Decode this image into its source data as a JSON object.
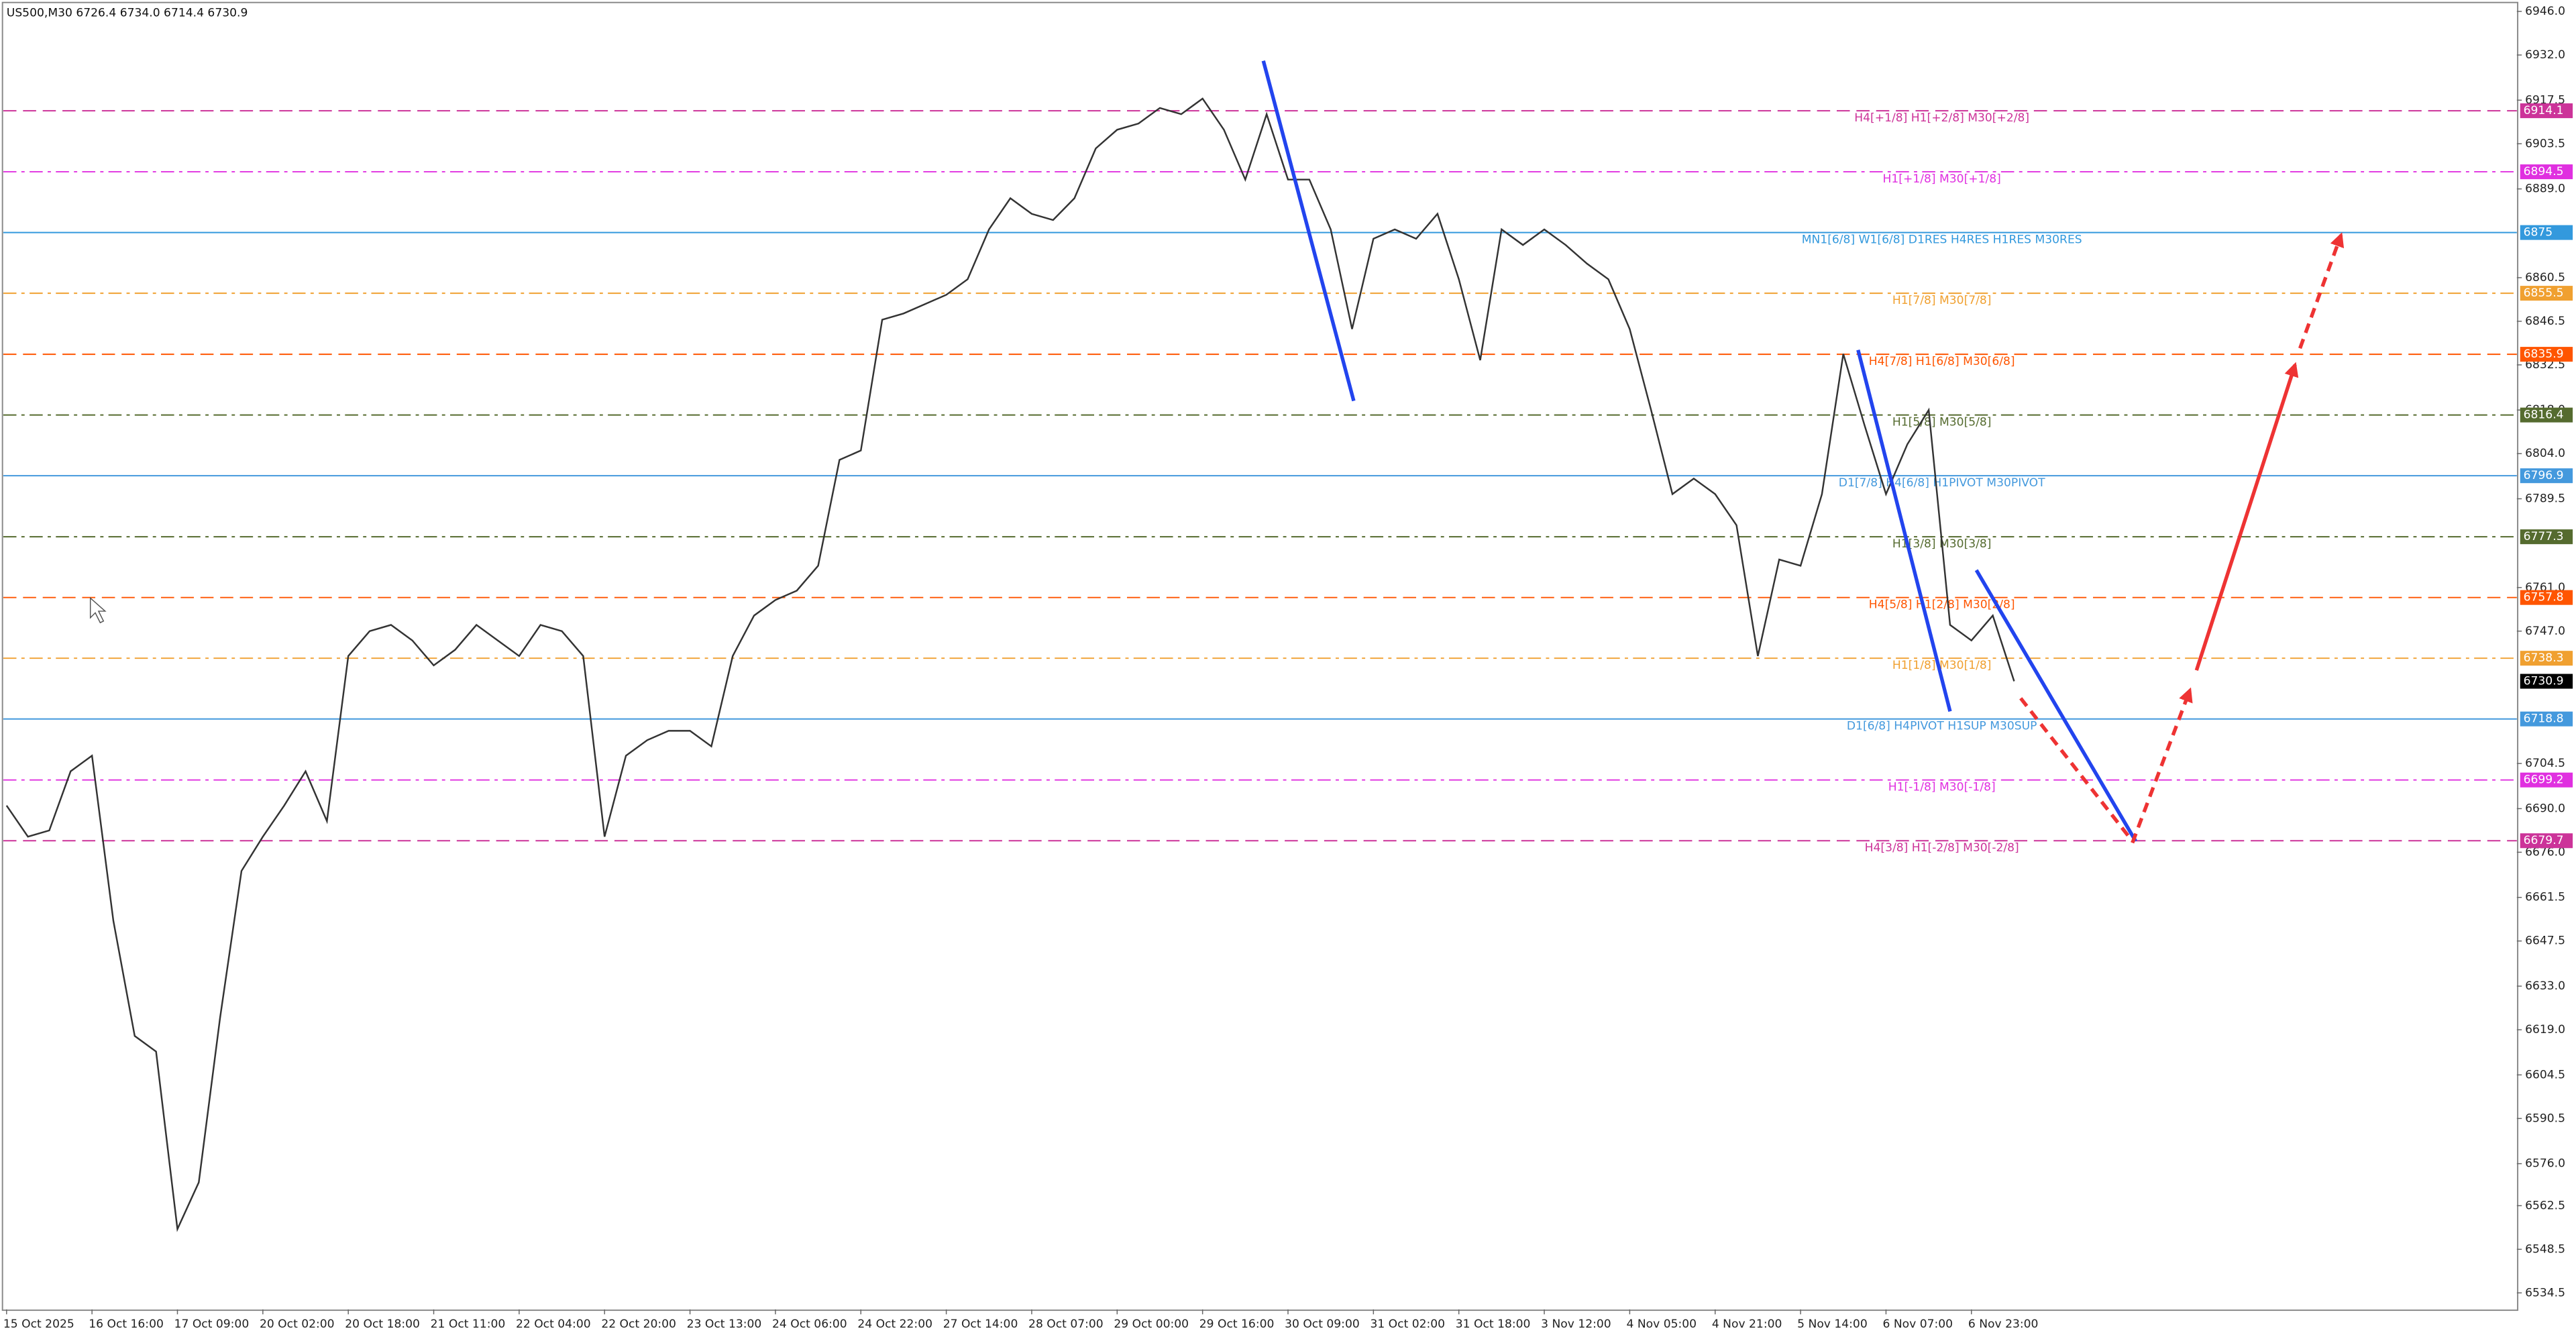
{
  "chart_data": {
    "type": "line",
    "title": "US500,M30  6726.4 6734.0 6714.4 6730.9",
    "color": "#333333",
    "categories": [
      "15 Oct 2025",
      null,
      null,
      null,
      "16 Oct 16:00",
      null,
      null,
      null,
      "17 Oct 09:00",
      null,
      null,
      null,
      "20 Oct 02:00",
      null,
      null,
      null,
      "20 Oct 18:00",
      null,
      null,
      null,
      "21 Oct 11:00",
      null,
      null,
      null,
      "22 Oct 04:00",
      null,
      null,
      null,
      "22 Oct 20:00",
      null,
      null,
      null,
      "23 Oct 13:00",
      null,
      null,
      null,
      "24 Oct 06:00",
      null,
      null,
      null,
      "24 Oct 22:00",
      null,
      null,
      null,
      "27 Oct 14:00",
      null,
      null,
      null,
      "28 Oct 07:00",
      null,
      null,
      null,
      "29 Oct 00:00",
      null,
      null,
      null,
      "29 Oct 16:00",
      null,
      null,
      null,
      "30 Oct 09:00",
      null,
      null,
      null,
      "31 Oct 02:00",
      null,
      null,
      null,
      "31 Oct 18:00",
      null,
      null,
      null,
      "3 Nov 12:00",
      null,
      null,
      null,
      "4 Nov 05:00",
      null,
      null,
      null,
      "4 Nov 21:00",
      null,
      null,
      null,
      "5 Nov 14:00",
      null,
      null,
      null,
      "6 Nov 07:00",
      null,
      null,
      null,
      "6 Nov 23:00",
      null,
      null
    ],
    "values": [
      6691,
      6681,
      6683,
      6702,
      6707,
      6654,
      6617,
      6612,
      6555,
      6570,
      6623,
      6670,
      6681,
      6691,
      6702,
      6686,
      6739,
      6747,
      6749,
      6744,
      6736,
      6741,
      6749,
      6744,
      6739,
      6749,
      6747,
      6739,
      6681,
      6707,
      6712,
      6715,
      6715,
      6710,
      6739,
      6752,
      6757,
      6760,
      6768,
      6802,
      6805,
      6847,
      6849,
      6852,
      6855,
      6860,
      6876,
      6886,
      6881,
      6879,
      6886,
      6902,
      6908,
      6910,
      6915,
      6913,
      6918,
      6908,
      6892,
      6913,
      6892,
      6892,
      6876,
      6844,
      6873,
      6876,
      6873,
      6881,
      6860,
      6834,
      6876,
      6871,
      6876,
      6871,
      6865,
      6860,
      6844,
      6818,
      6791,
      6796,
      6791,
      6781,
      6739,
      6770,
      6768,
      6791,
      6836,
      6813,
      6791,
      6807,
      6818,
      6749,
      6744,
      6752,
      6730.9
    ],
    "ylim": [
      6529.2,
      6948.6
    ],
    "yticks": [
      {
        "value": 6946,
        "label": "6946.0"
      },
      {
        "value": 6932,
        "label": "6932.0"
      },
      {
        "value": 6917.5,
        "label": "6917.5"
      },
      {
        "value": 6903.5,
        "label": "6903.5"
      },
      {
        "value": 6889,
        "label": "6889.0"
      },
      {
        "value": 6860.5,
        "label": "6860.5"
      },
      {
        "value": 6846.5,
        "label": "6846.5"
      },
      {
        "value": 6832.5,
        "label": "6832.5"
      },
      {
        "value": 6818,
        "label": "6818.0"
      },
      {
        "value": 6804,
        "label": "6804.0"
      },
      {
        "value": 6789.5,
        "label": "6789.5"
      },
      {
        "value": 6761,
        "label": "6761.0"
      },
      {
        "value": 6747,
        "label": "6747.0"
      },
      {
        "value": 6704.5,
        "label": "6704.5"
      },
      {
        "value": 6690,
        "label": "6690.0"
      },
      {
        "value": 6676,
        "label": "6676.0"
      },
      {
        "value": 6661.5,
        "label": "6661.5"
      },
      {
        "value": 6647.5,
        "label": "6647.5"
      },
      {
        "value": 6633,
        "label": "6633.0"
      },
      {
        "value": 6619,
        "label": "6619.0"
      },
      {
        "value": 6604.5,
        "label": "6604.5"
      },
      {
        "value": 6590.5,
        "label": "6590.5"
      },
      {
        "value": 6576,
        "label": "6576.0"
      },
      {
        "value": 6562.5,
        "label": "6562.5"
      },
      {
        "value": 6548.5,
        "label": "6548.5"
      },
      {
        "value": 6534.5,
        "label": "6534.5"
      }
    ],
    "levels": [
      {
        "value": 6914.1,
        "label": "H4[+1/8] H1[+2/8] M30[+2/8]",
        "color": "#cc3399",
        "style": "dashed"
      },
      {
        "value": 6894.5,
        "label": "H1[+1/8] M30[+1/8]",
        "color": "#e030e0",
        "style": "dashdot"
      },
      {
        "value": 6875.0,
        "label": "MN1[6/8] W1[6/8] D1RES H4RES H1RES M30RES",
        "color": "#3399dd",
        "style": "solid"
      },
      {
        "value": 6855.5,
        "label": "H1[7/8] M30[7/8]",
        "color": "#f0a030",
        "style": "dashdot"
      },
      {
        "value": 6835.9,
        "label": "H4[7/8] H1[6/8] M30[6/8]",
        "color": "#ff5500",
        "style": "dashed"
      },
      {
        "value": 6816.4,
        "label": "H1[5/8] M30[5/8]",
        "color": "#556b2f",
        "style": "dashdot"
      },
      {
        "value": 6796.9,
        "label": "D1[7/8] H4[6/8] H1PIVOT M30PIVOT",
        "color": "#4499dd",
        "style": "solid"
      },
      {
        "value": 6777.3,
        "label": "H1[3/8] M30[3/8]",
        "color": "#556b2f",
        "style": "dashdot"
      },
      {
        "value": 6757.8,
        "label": "H4[5/8] H1[2/8] M30[2/8]",
        "color": "#ff5500",
        "style": "dashed"
      },
      {
        "value": 6738.3,
        "label": "H1[1/8] M30[1/8]",
        "color": "#f0a030",
        "style": "dashdot"
      },
      {
        "value": 6718.8,
        "label": "D1[6/8] H4PIVOT H1SUP M30SUP",
        "color": "#4499dd",
        "style": "solid"
      },
      {
        "value": 6699.2,
        "label": "H1[-1/8] M30[-1/8]",
        "color": "#e030e0",
        "style": "dashdot"
      },
      {
        "value": 6679.7,
        "label": "H4[3/8] H1[-2/8] M30[-2/8]",
        "color": "#cc3399",
        "style": "dashed"
      }
    ]
  }
}
